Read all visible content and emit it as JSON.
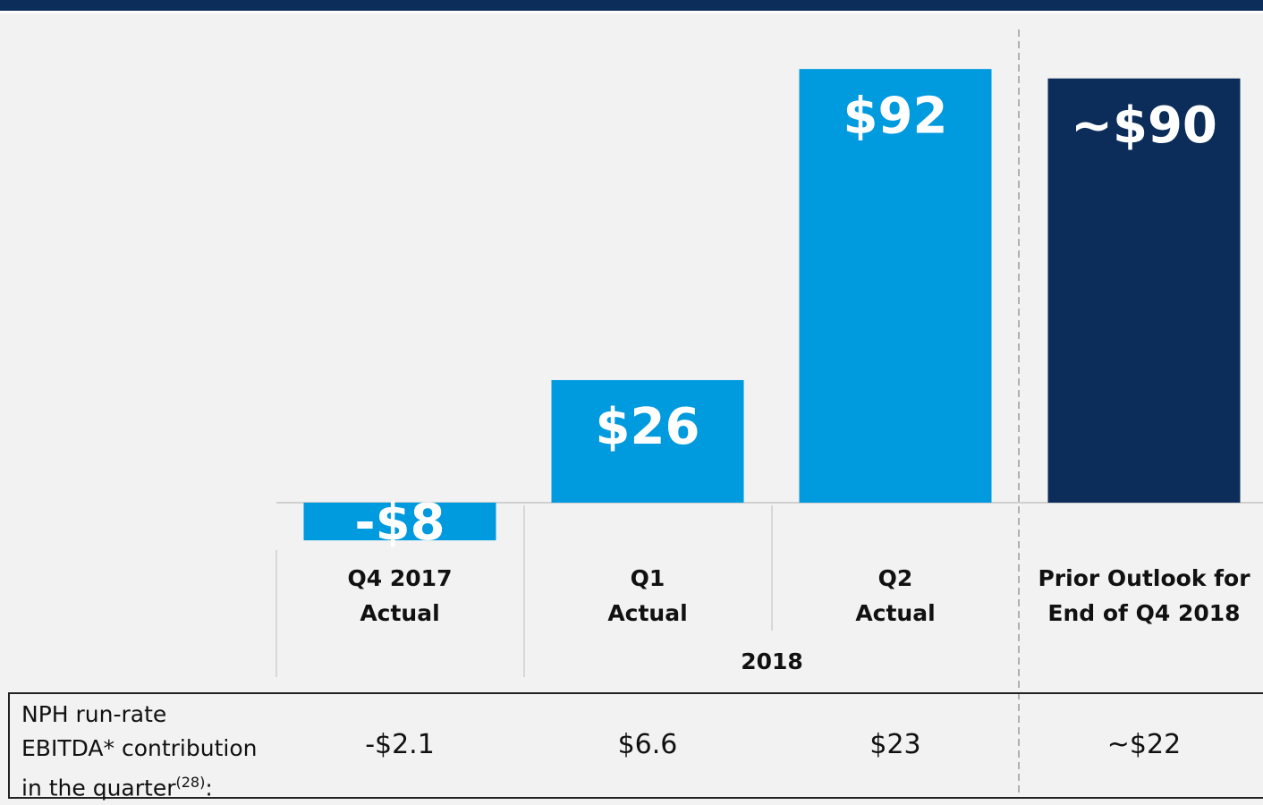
{
  "chart_data": {
    "type": "bar",
    "categories": [
      "Q4 2017\nActual",
      "Q1\nActual",
      "Q2\nActual",
      "Prior Outlook for\nEnd of Q4 2018"
    ],
    "values": [
      -8,
      26,
      92,
      90
    ],
    "value_labels": [
      "-$8",
      "$26",
      "$92",
      "~$90"
    ],
    "colors": [
      "#009ade",
      "#009ade",
      "#009ade",
      "#0c2d5a"
    ],
    "group_label": "2018",
    "ylim": [
      -15,
      100
    ],
    "table": {
      "row_label": "NPH run-rate\nEBITDA* contribution\nin the quarter",
      "note_ref": "(28)",
      "row_label_suffix": ":",
      "cells": [
        "-$2.1",
        "$6.6",
        "$23",
        "~$22"
      ]
    }
  }
}
